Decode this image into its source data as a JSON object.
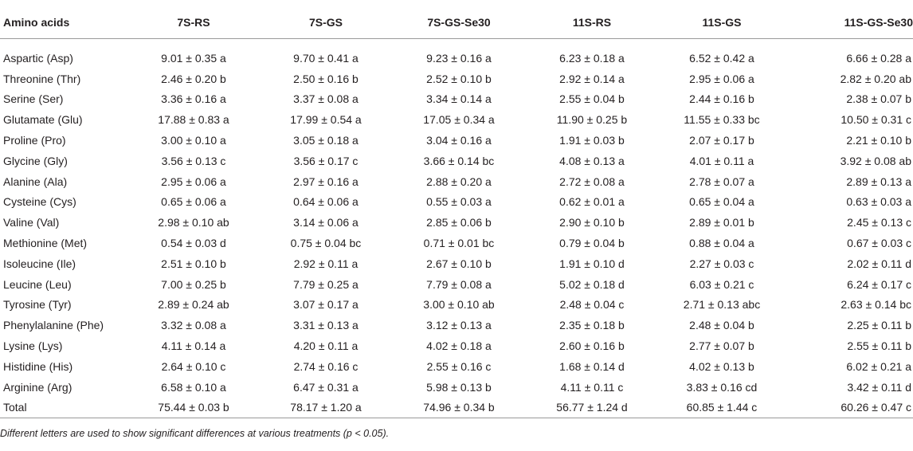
{
  "table": {
    "headers": [
      "Amino acids",
      "7S-RS",
      "7S-GS",
      "7S-GS-Se30",
      "11S-RS",
      "11S-GS",
      "11S-GS-Se30"
    ],
    "rows": [
      [
        "Aspartic (Asp)",
        "9.01 ± 0.35 a",
        "9.70 ± 0.41 a",
        "9.23 ± 0.16 a",
        "6.23 ± 0.18 a",
        "6.52 ± 0.42 a",
        "6.66 ± 0.28 a"
      ],
      [
        "Threonine (Thr)",
        "2.46 ± 0.20 b",
        "2.50 ± 0.16 b",
        "2.52 ± 0.10 b",
        "2.92 ± 0.14 a",
        "2.95 ± 0.06 a",
        "2.82 ± 0.20 ab"
      ],
      [
        "Serine (Ser)",
        "3.36 ± 0.16 a",
        "3.37 ± 0.08 a",
        "3.34 ± 0.14 a",
        "2.55 ± 0.04 b",
        "2.44 ± 0.16 b",
        "2.38 ± 0.07 b"
      ],
      [
        "Glutamate (Glu)",
        "17.88 ± 0.83 a",
        "17.99 ± 0.54 a",
        "17.05 ± 0.34 a",
        "11.90 ± 0.25 b",
        "11.55 ± 0.33 bc",
        "10.50 ± 0.31 c"
      ],
      [
        "Proline (Pro)",
        "3.00 ± 0.10 a",
        "3.05 ± 0.18 a",
        "3.04 ± 0.16 a",
        "1.91 ± 0.03 b",
        "2.07 ± 0.17 b",
        "2.21 ± 0.10 b"
      ],
      [
        "Glycine (Gly)",
        "3.56 ± 0.13 c",
        "3.56 ± 0.17 c",
        "3.66 ± 0.14 bc",
        "4.08 ± 0.13 a",
        "4.01 ± 0.11 a",
        "3.92 ± 0.08 ab"
      ],
      [
        "Alanine (Ala)",
        "2.95 ± 0.06 a",
        "2.97 ± 0.16 a",
        "2.88 ± 0.20 a",
        "2.72 ± 0.08 a",
        "2.78 ± 0.07 a",
        "2.89 ± 0.13 a"
      ],
      [
        "Cysteine (Cys)",
        "0.65 ± 0.06 a",
        "0.64 ± 0.06 a",
        "0.55 ± 0.03 a",
        "0.62 ± 0.01 a",
        "0.65 ± 0.04 a",
        "0.63 ± 0.03 a"
      ],
      [
        "Valine (Val)",
        "2.98 ± 0.10 ab",
        "3.14 ± 0.06 a",
        "2.85 ± 0.06 b",
        "2.90 ± 0.10 b",
        "2.89 ± 0.01 b",
        "2.45 ± 0.13 c"
      ],
      [
        "Methionine (Met)",
        "0.54 ± 0.03 d",
        "0.75 ± 0.04 bc",
        "0.71 ± 0.01 bc",
        "0.79 ± 0.04 b",
        "0.88 ± 0.04 a",
        "0.67 ± 0.03 c"
      ],
      [
        "Isoleucine (Ile)",
        "2.51 ± 0.10 b",
        "2.92 ± 0.11 a",
        "2.67 ± 0.10 b",
        "1.91 ± 0.10 d",
        "2.27 ± 0.03 c",
        "2.02 ± 0.11 d"
      ],
      [
        "Leucine (Leu)",
        "7.00 ± 0.25 b",
        "7.79 ± 0.25 a",
        "7.79 ± 0.08 a",
        "5.02 ± 0.18 d",
        "6.03 ± 0.21 c",
        "6.24 ± 0.17 c"
      ],
      [
        "Tyrosine (Tyr)",
        "2.89 ± 0.24 ab",
        "3.07 ± 0.17 a",
        "3.00 ± 0.10 ab",
        "2.48 ± 0.04 c",
        "2.71 ± 0.13 abc",
        "2.63 ± 0.14 bc"
      ],
      [
        "Phenylalanine (Phe)",
        "3.32 ± 0.08 a",
        "3.31 ± 0.13 a",
        "3.12 ± 0.13 a",
        "2.35 ± 0.18 b",
        "2.48 ± 0.04 b",
        "2.25 ± 0.11 b"
      ],
      [
        "Lysine (Lys)",
        "4.11 ± 0.14 a",
        "4.20 ± 0.11 a",
        "4.02 ± 0.18 a",
        "2.60 ± 0.16 b",
        "2.77 ± 0.07 b",
        "2.55 ± 0.11 b"
      ],
      [
        "Histidine (His)",
        "2.64 ± 0.10 c",
        "2.74 ± 0.16 c",
        "2.55 ± 0.16 c",
        "1.68 ± 0.14 d",
        "4.02 ± 0.13 b",
        "6.02 ± 0.21 a"
      ],
      [
        "Arginine (Arg)",
        "6.58 ± 0.10 a",
        "6.47 ± 0.31 a",
        "5.98 ± 0.13 b",
        "4.11 ± 0.11 c",
        "3.83 ± 0.16 cd",
        "3.42 ± 0.11 d"
      ],
      [
        "Total",
        "75.44 ± 0.03 b",
        "78.17 ± 1.20 a",
        "74.96 ± 0.34 b",
        "56.77 ± 1.24 d",
        "60.85 ± 1.44 c",
        "60.26 ± 0.47 c"
      ]
    ]
  },
  "footnote": "Different letters are used to show significant differences at various treatments (p < 0.05)."
}
